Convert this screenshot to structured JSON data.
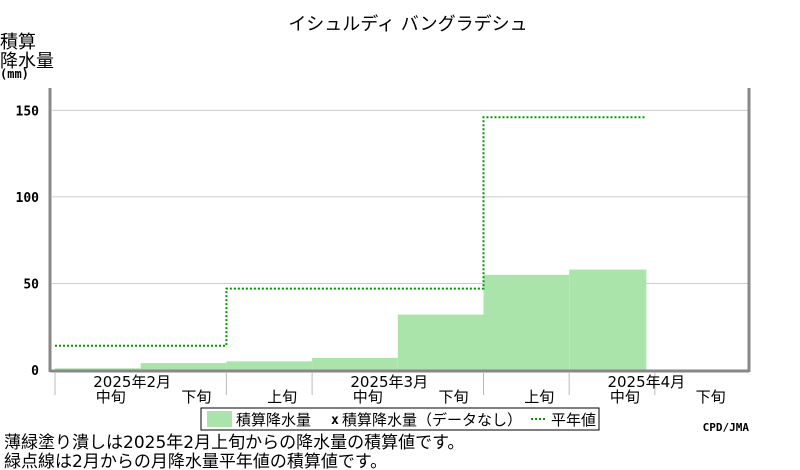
{
  "chart_data": {
    "type": "area",
    "title": "イシュルディ バングラデシュ",
    "ylabel": [
      "積算",
      "降水量",
      "(mm)"
    ],
    "ylim": [
      0,
      160
    ],
    "yticks": [
      0,
      50,
      100,
      150
    ],
    "grid": true,
    "x_periods": [
      "2025-02 中旬",
      "2025-02 下旬",
      "2025-03 上旬",
      "2025-03 中旬",
      "2025-03 下旬",
      "2025-04 上旬",
      "2025-04 中旬",
      "2025-04 下旬"
    ],
    "series": [
      {
        "name": "積算降水量",
        "style": "filled-steps",
        "color": "#aae4aa",
        "steps": [
          {
            "from": 0,
            "to": 0.5,
            "value": 1
          },
          {
            "from": 0.5,
            "to": 1.0,
            "value": 1
          },
          {
            "from": 1.0,
            "to": 2.0,
            "value": 4
          },
          {
            "from": 2.0,
            "to": 3.0,
            "value": 5
          },
          {
            "from": 3.0,
            "to": 4.0,
            "value": 7
          },
          {
            "from": 4.0,
            "to": 5.0,
            "value": 32
          },
          {
            "from": 5.0,
            "to": 6.0,
            "value": 55
          },
          {
            "from": 6.0,
            "to": 6.9,
            "value": 58
          }
        ]
      },
      {
        "name": "平年値",
        "style": "dotted-steps",
        "color": "#009900",
        "steps": [
          {
            "from": 0,
            "to": 2.0,
            "value": 14
          },
          {
            "from": 2.0,
            "to": 5.0,
            "value": 47
          },
          {
            "from": 5.0,
            "to": 6.9,
            "value": 146
          }
        ]
      }
    ],
    "axis_labels": {
      "tiers": [
        {
          "text": "中旬",
          "pos": 0.65
        },
        {
          "text": "下旬",
          "pos": 1.65
        },
        {
          "text": "上旬",
          "pos": 2.65
        },
        {
          "text": "中旬",
          "pos": 3.65
        },
        {
          "text": "下旬",
          "pos": 4.65
        },
        {
          "text": "上旬",
          "pos": 5.65
        },
        {
          "text": "中旬",
          "pos": 6.65
        },
        {
          "text": "下旬",
          "pos": 7.65
        }
      ],
      "months": [
        {
          "text": "2025年2月",
          "pos": 0.9
        },
        {
          "text": "2025年3月",
          "pos": 3.9
        },
        {
          "text": "2025年4月",
          "pos": 6.9
        }
      ],
      "ticks": [
        0,
        2,
        3,
        5,
        6,
        7
      ]
    },
    "legend": {
      "placement": "bottom",
      "items": [
        "積算降水量",
        "積算降水量（データなし）",
        "平年値"
      ],
      "missing_marker": "x"
    },
    "credit": "CPD/JMA"
  },
  "notes": [
    "薄緑塗り潰しは2025年2月上旬からの降水量の積算値です。",
    "緑点線は2月からの月降水量平年値の積算値です。"
  ]
}
